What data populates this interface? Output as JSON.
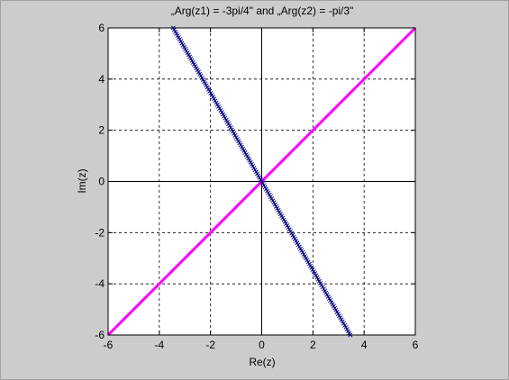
{
  "chart_data": {
    "type": "line",
    "title": "„Arg(z1) = -3pi/4\" and „Arg(z2) = -pi/3\"",
    "xlabel": "Re(z)",
    "ylabel": "Im(z)",
    "xlim": [
      -6,
      6
    ],
    "ylim": [
      -6,
      6
    ],
    "xticks": [
      -6,
      -4,
      -2,
      0,
      2,
      4,
      6
    ],
    "yticks": [
      -6,
      -4,
      -2,
      0,
      2,
      4,
      6
    ],
    "xtick_labels": [
      "-6",
      "-4",
      "-2",
      "0",
      "2",
      "4",
      "6"
    ],
    "ytick_labels": [
      "-6",
      "-4",
      "-2",
      "0",
      "2",
      "4",
      "6"
    ],
    "grid": true,
    "series": [
      {
        "color": "#ff00ff",
        "style": "solid-line",
        "x": [
          -6,
          6
        ],
        "y": [
          -6,
          6
        ]
      },
      {
        "color": "#000080",
        "style": "x-markers",
        "x": [
          -3.46,
          3.46
        ],
        "y": [
          6,
          -6
        ]
      }
    ]
  },
  "colors": {
    "figure_background": "#cccccc",
    "axes_background": "#ffffff",
    "grid": "#000000"
  }
}
